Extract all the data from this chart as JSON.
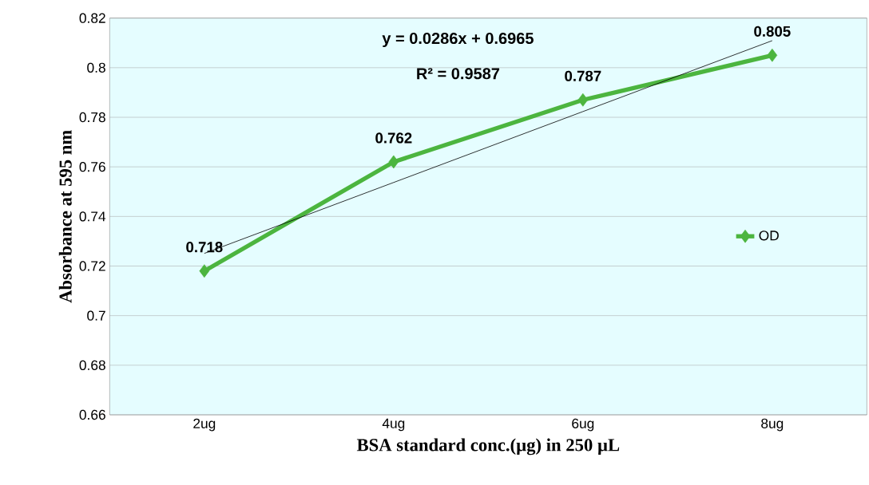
{
  "chart_data": {
    "type": "line",
    "xlabel": "BSA standard conc.(µg) in 250 µL",
    "ylabel": "Absorbance at 595 nm",
    "categories": [
      "2ug",
      "4ug",
      "6ug",
      "8ug"
    ],
    "series": [
      {
        "name": "OD",
        "color": "#4cb53f",
        "values": [
          0.718,
          0.762,
          0.787,
          0.805
        ],
        "value_labels": [
          "0.718",
          "0.762",
          "0.787",
          "0.805"
        ],
        "marker": "diamond"
      },
      {
        "type": "line",
        "color": "#000000",
        "values": [
          0.7251,
          0.7537,
          0.7823,
          0.8109
        ],
        "marker": "none"
      }
    ],
    "annotations": [
      "y = 0.0286x + 0.6965",
      "R² = 0.9587"
    ],
    "ylim": [
      0.66,
      0.82
    ],
    "yticks": [
      0.66,
      0.68,
      0.7,
      0.72,
      0.74,
      0.76,
      0.78,
      0.8,
      0.82
    ],
    "grid": "y",
    "legend": "right"
  }
}
